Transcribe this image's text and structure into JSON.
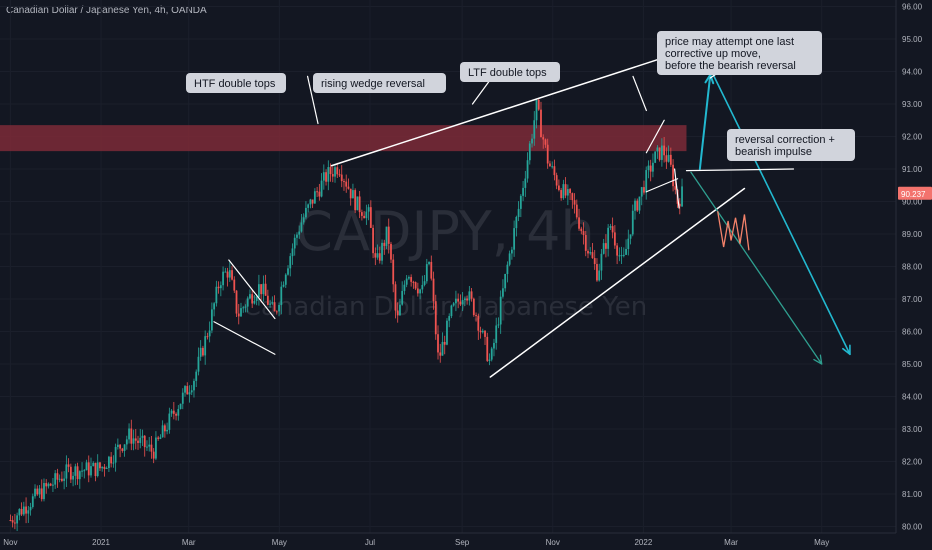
{
  "header": {
    "symbol_title": "Canadian Dollar / Japanese Yen, 4h, OANDA"
  },
  "watermark": {
    "ticker": "CADJPY, 4h",
    "name": "Canadian Dollar / Japanese Yen"
  },
  "colors": {
    "background": "#131722",
    "candle_up": "#26a69a",
    "candle_down": "#ef5350",
    "zone": "#7d2a37",
    "trendline": "#ffffff",
    "primary_arrow": "#22b8cf",
    "secondary_arrow": "#2f9e8f",
    "projection": "#f4826a",
    "price_tag": "#f3736d",
    "callout_bg": "#d1d4dc",
    "callout_text": "#131722"
  },
  "chart_data": {
    "type": "candlestick",
    "instrument": "CADJPY",
    "timeframe": "4h",
    "source": "OANDA",
    "current_price": "90.237",
    "ylim": [
      79.8,
      96.2
    ],
    "y_ticks": [
      "96.00",
      "95.00",
      "94.00",
      "93.00",
      "92.00",
      "91.00",
      "90.00",
      "89.00",
      "88.00",
      "87.00",
      "86.00",
      "85.00",
      "84.00",
      "83.00",
      "82.00",
      "81.00",
      "80.00"
    ],
    "x_ticks": [
      "Nov",
      "2021",
      "Mar",
      "May",
      "Jul",
      "Sep",
      "Nov",
      "2022",
      "Mar",
      "May"
    ],
    "price_path": [
      [
        "2020-11-01",
        80.2
      ],
      [
        "2020-11-20",
        81.0
      ],
      [
        "2020-12-10",
        81.7
      ],
      [
        "2021-01-01",
        81.8
      ],
      [
        "2021-01-20",
        82.8
      ],
      [
        "2021-02-05",
        82.3
      ],
      [
        "2021-02-20",
        83.6
      ],
      [
        "2021-03-05",
        84.6
      ],
      [
        "2021-03-15",
        86.2
      ],
      [
        "2021-03-22",
        87.6
      ],
      [
        "2021-03-28",
        87.9
      ],
      [
        "2021-04-03",
        86.5
      ],
      [
        "2021-04-10",
        87.0
      ],
      [
        "2021-04-18",
        87.4
      ],
      [
        "2021-04-28",
        86.5
      ],
      [
        "2021-05-05",
        87.9
      ],
      [
        "2021-05-15",
        89.3
      ],
      [
        "2021-05-25",
        90.2
      ],
      [
        "2021-06-02",
        90.8
      ],
      [
        "2021-06-10",
        91.1
      ],
      [
        "2021-06-16",
        90.5
      ],
      [
        "2021-06-22",
        89.9
      ],
      [
        "2021-06-30",
        89.6
      ],
      [
        "2021-07-05",
        88.0
      ],
      [
        "2021-07-13",
        89.1
      ],
      [
        "2021-07-19",
        86.2
      ],
      [
        "2021-07-26",
        87.9
      ],
      [
        "2021-08-05",
        87.2
      ],
      [
        "2021-08-10",
        88.2
      ],
      [
        "2021-08-16",
        85.1
      ],
      [
        "2021-08-25",
        86.6
      ],
      [
        "2021-09-03",
        87.3
      ],
      [
        "2021-09-10",
        86.6
      ],
      [
        "2021-09-20",
        85.0
      ],
      [
        "2021-10-01",
        87.9
      ],
      [
        "2021-10-10",
        90.0
      ],
      [
        "2021-10-18",
        92.1
      ],
      [
        "2021-10-21",
        92.9
      ],
      [
        "2021-10-29",
        91.2
      ],
      [
        "2021-11-06",
        90.4
      ],
      [
        "2021-11-15",
        89.9
      ],
      [
        "2021-11-25",
        88.5
      ],
      [
        "2021-12-01",
        87.8
      ],
      [
        "2021-12-10",
        89.3
      ],
      [
        "2021-12-18",
        88.0
      ],
      [
        "2021-12-25",
        89.6
      ],
      [
        "2022-01-02",
        90.6
      ],
      [
        "2022-01-08",
        91.3
      ],
      [
        "2022-01-14",
        91.6
      ],
      [
        "2022-01-19",
        91.1
      ],
      [
        "2022-01-24",
        90.0
      ],
      [
        "2022-01-27",
        90.24
      ]
    ],
    "annotations": {
      "htf": "HTF double tops",
      "wedge": "rising wedge reversal",
      "ltf": "LTF double tops",
      "attempt": [
        "price may attempt one last",
        "corrective up move,",
        "before the bearish reversal"
      ],
      "reversal": [
        "reversal correction +",
        "bearish impulse"
      ]
    },
    "resistance_zone": [
      91.55,
      92.35
    ],
    "wedge_upper": [
      [
        "2021-06-05",
        91.1
      ],
      [
        "2022-03-01",
        95.1
      ]
    ],
    "wedge_lower": [
      [
        "2021-09-20",
        84.6
      ],
      [
        "2022-03-10",
        90.4
      ]
    ],
    "projection_arrow": [
      [
        "2022-02-08",
        91.0
      ],
      [
        "2022-02-15",
        93.9
      ]
    ],
    "bearish_arrow_1": [
      [
        "2022-02-17",
        93.9
      ],
      [
        "2022-05-20",
        85.3
      ]
    ],
    "bearish_arrow_2": [
      [
        "2022-02-02",
        90.9
      ],
      [
        "2022-05-01",
        85.0
      ]
    ]
  }
}
